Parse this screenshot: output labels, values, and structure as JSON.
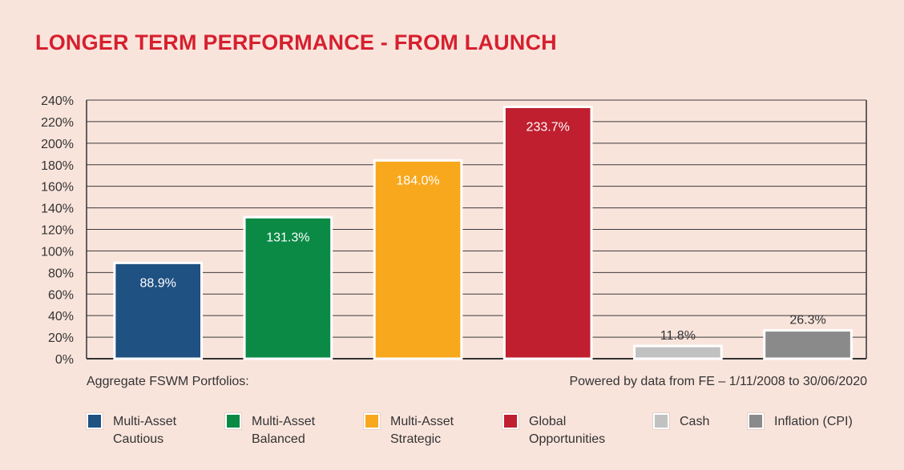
{
  "title": "LONGER TERM PERFORMANCE - FROM LAUNCH",
  "footer": {
    "left": "Aggregate FSWM Portfolios:",
    "right": "Powered by data from FE – 1/11/2008 to 30/06/2020"
  },
  "chart_data": {
    "type": "bar",
    "title": "LONGER TERM PERFORMANCE - FROM LAUNCH",
    "xlabel": "",
    "ylabel": "",
    "ylim": [
      0,
      240
    ],
    "yticks": [
      0,
      20,
      40,
      60,
      80,
      100,
      120,
      140,
      160,
      180,
      200,
      220,
      240
    ],
    "ytick_labels": [
      "0%",
      "20%",
      "40%",
      "60%",
      "80%",
      "100%",
      "120%",
      "140%",
      "160%",
      "180%",
      "200%",
      "220%",
      "240%"
    ],
    "grid": true,
    "legend_placement": "bottom",
    "categories": [
      "Multi-Asset Cautious",
      "Multi-Asset Balanced",
      "Multi-Asset Strategic",
      "Global Opportunities",
      "Cash",
      "Inflation (CPI)"
    ],
    "values": [
      88.9,
      131.3,
      184.0,
      233.7,
      11.8,
      26.3
    ],
    "value_labels": [
      "88.9%",
      "131.3%",
      "184.0%",
      "233.7%",
      "11.8%",
      "26.3%"
    ],
    "colors": [
      "#1f5182",
      "#0b8a45",
      "#f8a81d",
      "#c01f2f",
      "#c1c1c1",
      "#8a8a8a"
    ]
  },
  "legend": [
    {
      "label": "Multi-Asset Cautious",
      "color": "#1f5182"
    },
    {
      "label": "Multi-Asset Balanced",
      "color": "#0b8a45"
    },
    {
      "label": "Multi-Asset Strategic",
      "color": "#f8a81d"
    },
    {
      "label": "Global Opportunities",
      "color": "#c01f2f"
    },
    {
      "label": "Cash",
      "color": "#c1c1c1"
    },
    {
      "label": "Inflation (CPI)",
      "color": "#8a8a8a"
    }
  ]
}
